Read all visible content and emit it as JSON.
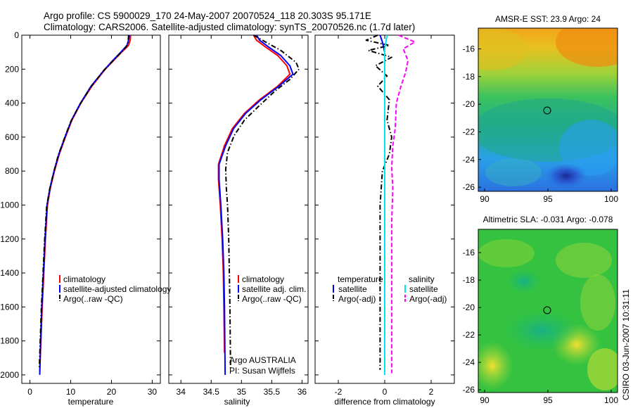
{
  "title": {
    "line1": "Argo profile: CS 5900029_170 24-May-2007 20070524_118 20.303S 95.171E",
    "line2": "Climatology: CARS2006. Satellite-adjusted climatology: synTS_20070526.nc (1.7d later)"
  },
  "colors": {
    "climatology": "#ff0000",
    "satellite": "#0000ff",
    "argo": "#000000",
    "sat_salinity": "#00e5ee",
    "argo_salinity": "#ff00ff"
  },
  "chart_data": [
    {
      "id": "temperature",
      "type": "line",
      "xlabel": "temperature",
      "ylabel": "",
      "xlim": [
        -2,
        32
      ],
      "ylim": [
        2050,
        0
      ],
      "xticks": [
        0,
        10,
        20,
        30
      ],
      "yticks": [
        0,
        200,
        400,
        600,
        800,
        1000,
        1200,
        1400,
        1600,
        1800,
        2000
      ],
      "legend": [
        "climatology",
        "satellite-adjusted climatology",
        "Argo(..raw -QC)"
      ],
      "series": [
        {
          "name": "climatology",
          "color": "#ff0000",
          "dash": "solid",
          "points": [
            [
              24.7,
              0
            ],
            [
              24.6,
              30
            ],
            [
              24.2,
              60
            ],
            [
              22.5,
              100
            ],
            [
              20.5,
              150
            ],
            [
              18.5,
              200
            ],
            [
              15.2,
              300
            ],
            [
              12.5,
              400
            ],
            [
              10.3,
              500
            ],
            [
              8.7,
              600
            ],
            [
              7.2,
              700
            ],
            [
              6.0,
              800
            ],
            [
              5.0,
              900
            ],
            [
              4.3,
              1000
            ],
            [
              3.8,
              1200
            ],
            [
              3.4,
              1400
            ],
            [
              3.0,
              1600
            ],
            [
              2.7,
              1800
            ],
            [
              2.4,
              1980
            ]
          ]
        },
        {
          "name": "satellite-adjusted climatology",
          "color": "#0000ff",
          "dash": "solid",
          "points": [
            [
              24.4,
              0
            ],
            [
              24.2,
              30
            ],
            [
              23.8,
              60
            ],
            [
              22.3,
              100
            ],
            [
              20.3,
              150
            ],
            [
              18.4,
              200
            ],
            [
              15.0,
              300
            ],
            [
              12.4,
              400
            ],
            [
              10.2,
              500
            ],
            [
              8.6,
              600
            ],
            [
              7.1,
              700
            ],
            [
              5.9,
              800
            ],
            [
              4.9,
              900
            ],
            [
              4.2,
              1000
            ],
            [
              3.7,
              1200
            ],
            [
              3.3,
              1400
            ],
            [
              2.9,
              1600
            ],
            [
              2.6,
              1800
            ],
            [
              2.4,
              2000
            ]
          ]
        },
        {
          "name": "Argo(..raw -QC)",
          "color": "#000000",
          "dash": "dashdot",
          "points": [
            [
              24.2,
              0
            ],
            [
              24.1,
              40
            ],
            [
              23.6,
              70
            ],
            [
              22.0,
              110
            ],
            [
              20.0,
              160
            ],
            [
              18.0,
              210
            ],
            [
              14.8,
              310
            ],
            [
              12.2,
              410
            ],
            [
              10.0,
              510
            ],
            [
              8.4,
              610
            ],
            [
              6.9,
              710
            ],
            [
              5.8,
              810
            ],
            [
              4.8,
              910
            ],
            [
              4.1,
              1010
            ],
            [
              3.6,
              1210
            ],
            [
              3.2,
              1410
            ],
            [
              2.8,
              1610
            ],
            [
              2.5,
              1810
            ],
            [
              2.3,
              1960
            ]
          ]
        }
      ]
    },
    {
      "id": "salinity",
      "type": "line",
      "xlabel": "salinity",
      "ylabel": "",
      "xlim": [
        33.8,
        36.1
      ],
      "ylim": [
        2050,
        0
      ],
      "xticks": [
        34,
        34.5,
        35,
        35.5,
        36
      ],
      "yticks": [],
      "legend": [
        "climatology",
        "satellite adj. clim.",
        "Argo(..raw -QC)"
      ],
      "annotations": [
        "Argo AUSTRALIA",
        "PI: Susan Wijffels"
      ],
      "series": [
        {
          "name": "climatology",
          "color": "#ff0000",
          "dash": "solid",
          "points": [
            [
              35.2,
              0
            ],
            [
              35.25,
              30
            ],
            [
              35.4,
              70
            ],
            [
              35.6,
              120
            ],
            [
              35.75,
              180
            ],
            [
              35.8,
              230
            ],
            [
              35.6,
              300
            ],
            [
              35.3,
              380
            ],
            [
              35.05,
              460
            ],
            [
              34.85,
              550
            ],
            [
              34.72,
              650
            ],
            [
              34.62,
              760
            ],
            [
              34.62,
              850
            ],
            [
              34.65,
              1000
            ],
            [
              34.68,
              1200
            ],
            [
              34.7,
              1400
            ],
            [
              34.71,
              1600
            ],
            [
              34.72,
              1870
            ]
          ]
        },
        {
          "name": "satellite adj. clim.",
          "color": "#0000ff",
          "dash": "solid",
          "points": [
            [
              35.25,
              0
            ],
            [
              35.3,
              30
            ],
            [
              35.45,
              70
            ],
            [
              35.65,
              120
            ],
            [
              35.8,
              180
            ],
            [
              35.85,
              230
            ],
            [
              35.62,
              300
            ],
            [
              35.32,
              380
            ],
            [
              35.07,
              460
            ],
            [
              34.87,
              550
            ],
            [
              34.74,
              650
            ],
            [
              34.63,
              760
            ],
            [
              34.63,
              850
            ],
            [
              34.66,
              1000
            ],
            [
              34.69,
              1200
            ],
            [
              34.71,
              1400
            ],
            [
              34.72,
              1600
            ],
            [
              34.73,
              2000
            ]
          ]
        },
        {
          "name": "Argo(..raw -QC)",
          "color": "#000000",
          "dash": "dashdot",
          "points": [
            [
              35.2,
              0
            ],
            [
              35.4,
              40
            ],
            [
              35.65,
              90
            ],
            [
              35.9,
              160
            ],
            [
              35.95,
              200
            ],
            [
              35.8,
              260
            ],
            [
              35.55,
              330
            ],
            [
              35.28,
              420
            ],
            [
              35.05,
              500
            ],
            [
              34.88,
              590
            ],
            [
              34.77,
              690
            ],
            [
              34.74,
              790
            ],
            [
              34.75,
              900
            ],
            [
              34.77,
              1000
            ],
            [
              34.79,
              1200
            ],
            [
              34.8,
              1400
            ],
            [
              34.81,
              1600
            ],
            [
              34.82,
              1960
            ]
          ]
        }
      ]
    },
    {
      "id": "difference",
      "type": "line",
      "xlabel": "difference from climatology",
      "ylabel": "",
      "xlim": [
        -3,
        3
      ],
      "ylim": [
        2050,
        0
      ],
      "xticks": [
        -2,
        0,
        2
      ],
      "yticks": [],
      "legend_left_title": "temperature",
      "legend_right_title": "salinity",
      "legend_left": [
        "satellite",
        "Argo(-adj)"
      ],
      "legend_right": [
        "satellite",
        "Argo(-adj)"
      ],
      "series": [
        {
          "name": "temperature satellite",
          "color": "#0000ff",
          "dash": "solid",
          "points": [
            [
              -0.2,
              0
            ],
            [
              -0.1,
              40
            ],
            [
              0.0,
              100
            ],
            [
              0.0,
              300
            ],
            [
              0.0,
              800
            ],
            [
              0.0,
              1200
            ],
            [
              0.0,
              1600
            ],
            [
              0.0,
              2000
            ]
          ]
        },
        {
          "name": "temperature Argo(-adj)",
          "color": "#000000",
          "dash": "dashdot",
          "points": [
            [
              -0.3,
              0
            ],
            [
              -0.8,
              30
            ],
            [
              0.2,
              60
            ],
            [
              -0.7,
              90
            ],
            [
              0.3,
              130
            ],
            [
              -0.4,
              180
            ],
            [
              0.1,
              240
            ],
            [
              -0.3,
              300
            ],
            [
              0.2,
              380
            ],
            [
              0.1,
              500
            ],
            [
              0.3,
              600
            ],
            [
              0.2,
              700
            ],
            [
              -0.1,
              800
            ],
            [
              -0.2,
              1000
            ],
            [
              -0.2,
              1200
            ],
            [
              -0.2,
              1400
            ],
            [
              -0.2,
              1600
            ],
            [
              -0.2,
              1800
            ],
            [
              -0.2,
              1970
            ]
          ]
        },
        {
          "name": "salinity satellite",
          "color": "#00e5ee",
          "dash": "solid",
          "points": [
            [
              0.1,
              0
            ],
            [
              0.0,
              80
            ],
            [
              0.0,
              300
            ],
            [
              0.0,
              800
            ],
            [
              0.0,
              1200
            ],
            [
              0.0,
              1600
            ],
            [
              0.0,
              2000
            ]
          ]
        },
        {
          "name": "salinity Argo(-adj)",
          "color": "#ff00ff",
          "dash": "dashed",
          "points": [
            [
              0.6,
              0
            ],
            [
              1.3,
              40
            ],
            [
              0.8,
              80
            ],
            [
              1.0,
              150
            ],
            [
              0.9,
              220
            ],
            [
              0.7,
              300
            ],
            [
              0.5,
              400
            ],
            [
              0.45,
              550
            ],
            [
              0.35,
              650
            ],
            [
              0.3,
              780
            ],
            [
              0.35,
              900
            ],
            [
              0.3,
              1100
            ],
            [
              0.3,
              1300
            ],
            [
              0.3,
              1500
            ],
            [
              0.3,
              1700
            ],
            [
              0.3,
              1990
            ]
          ]
        }
      ]
    },
    {
      "id": "sst-map",
      "type": "heatmap",
      "title": "AMSR-E SST: 23.9 Argo: 24",
      "xlim": [
        89.5,
        100.5
      ],
      "ylim": [
        -26.3,
        -14.5
      ],
      "xticks": [
        90,
        95,
        100
      ],
      "yticks": [
        -16,
        -18,
        -20,
        -22,
        -24,
        -26
      ],
      "marker": [
        95.171,
        -20.303
      ]
    },
    {
      "id": "sla-map",
      "type": "heatmap",
      "title": "Altimetric SLA: -0.031 Argo: -0.078",
      "xlim": [
        89.5,
        100.5
      ],
      "ylim": [
        -26.2,
        -14.3
      ],
      "xticks": [
        90,
        95,
        100
      ],
      "yticks": [
        -16,
        -18,
        -20,
        -22,
        -24,
        -26
      ],
      "marker": [
        95.171,
        -20.303
      ]
    }
  ],
  "footer": "CSIRO 03-Jun-2007 10:31:11"
}
